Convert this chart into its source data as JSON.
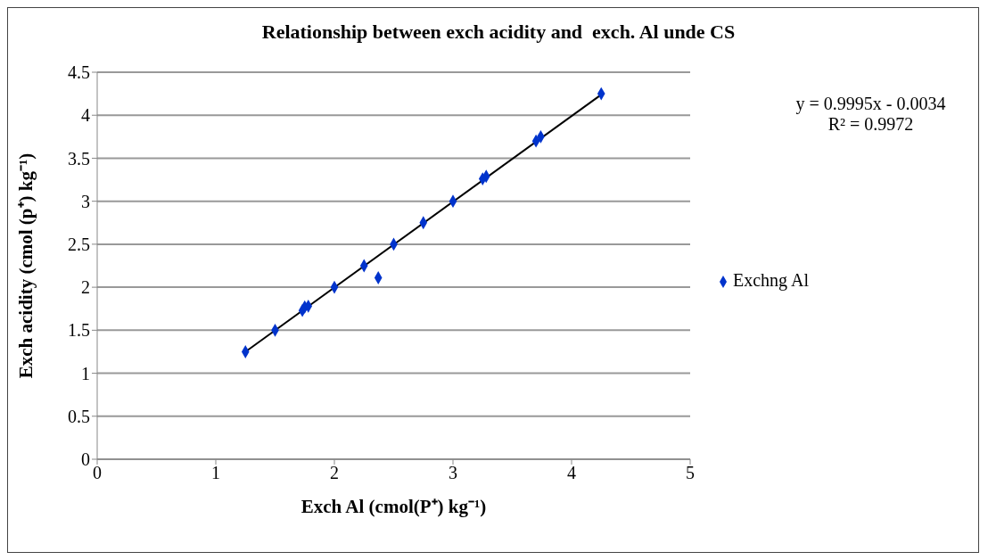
{
  "chart_data": {
    "type": "scatter",
    "title": "Relationship between exch acidity and  exch. Al unde CS",
    "xlabel": "Exch Al (cmol(P⁺) kg⁻¹)",
    "ylabel": "Exch acidity (cmol (p⁺) kg⁻¹)",
    "annotations": [
      "y = 0.9995x - 0.0034",
      "R² = 0.9972"
    ],
    "series": [
      {
        "name": "Exchng Al",
        "color": "#0033cc",
        "marker": "diamond",
        "x": [
          1.25,
          1.5,
          1.73,
          1.75,
          1.78,
          2.0,
          2.25,
          2.37,
          2.5,
          2.75,
          3.0,
          3.25,
          3.28,
          3.7,
          3.74,
          4.25
        ],
        "values": [
          1.25,
          1.5,
          1.73,
          1.77,
          1.78,
          2.0,
          2.25,
          2.11,
          2.5,
          2.75,
          3.0,
          3.26,
          3.29,
          3.7,
          3.75,
          4.25
        ]
      },
      {
        "type": "line",
        "color": "#000000",
        "marker": "none",
        "x": [
          1.25,
          4.25
        ],
        "values": [
          1.25,
          4.24
        ]
      }
    ],
    "xlim": [
      0,
      5
    ],
    "xticks": [
      0,
      1,
      2,
      3,
      4,
      5
    ],
    "ylim": [
      0,
      4.5
    ],
    "yticks": [
      0,
      0.5,
      1,
      1.5,
      2,
      2.5,
      3,
      3.5,
      4,
      4.5
    ],
    "grid": "y",
    "legend": "right",
    "line_style": "solid"
  }
}
